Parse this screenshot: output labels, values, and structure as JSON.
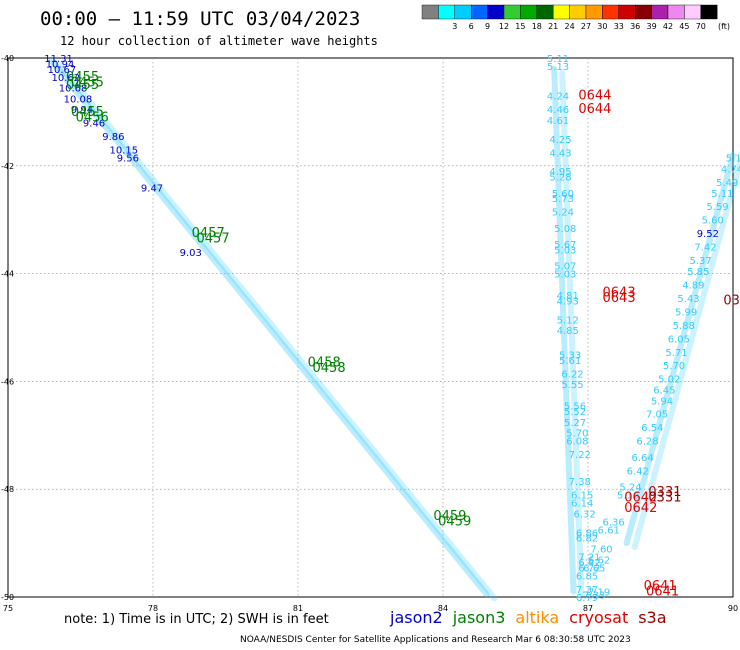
{
  "header": {
    "title": "00:00 — 11:59 UTC 03/04/2023",
    "subtitle": "12 hour collection of altimeter wave heights"
  },
  "footer": {
    "note": "note: 1) Time is in UTC; 2) SWH is in feet",
    "credit": "NOAA/NESDIS Center for Satellite Applications and Research   Mar  6 08:30:58 UTC 2023"
  },
  "satellites": [
    {
      "name": "jason2",
      "color": "#0000cc"
    },
    {
      "name": "jason3",
      "color": "#008000"
    },
    {
      "name": "altika",
      "color": "#ff8c00"
    },
    {
      "name": "cryosat",
      "color": "#e00000"
    },
    {
      "name": "s3a",
      "color": "#990000"
    }
  ],
  "colorbar": {
    "unit": "(ft)",
    "boxes": [
      {
        "color": "#808080",
        "label": ""
      },
      {
        "color": "#00ffff",
        "label": "3"
      },
      {
        "color": "#00ccff",
        "label": "6"
      },
      {
        "color": "#0066ff",
        "label": "9"
      },
      {
        "color": "#0000cc",
        "label": "12"
      },
      {
        "color": "#33cc33",
        "label": "15"
      },
      {
        "color": "#00aa00",
        "label": "18"
      },
      {
        "color": "#006600",
        "label": "21"
      },
      {
        "color": "#ffff00",
        "label": "24"
      },
      {
        "color": "#ffcc00",
        "label": "27"
      },
      {
        "color": "#ff9900",
        "label": "30"
      },
      {
        "color": "#ff3300",
        "label": "33"
      },
      {
        "color": "#cc0000",
        "label": "36"
      },
      {
        "color": "#880000",
        "label": "39"
      },
      {
        "color": "#aa22aa",
        "label": "42"
      },
      {
        "color": "#ee88ee",
        "label": "45"
      },
      {
        "color": "#ffccff",
        "label": "70"
      },
      {
        "color": "#000000",
        "label": ""
      }
    ]
  },
  "chart_data": {
    "type": "scatter",
    "title": "00:00 — 11:59 UTC 03/04/2023",
    "xlabel": "",
    "ylabel": "",
    "xlim": [
      75,
      90
    ],
    "ylim": [
      -50,
      -40
    ],
    "x_ticks": [
      "75",
      "78",
      "81",
      "84",
      "87",
      "90"
    ],
    "y_ticks": [
      "-40",
      "-42",
      "-44",
      "-46",
      "-48",
      "-50"
    ],
    "tracks": [
      {
        "name": "diagonal-track",
        "color": "#33ccff",
        "start": [
          75.9,
          -40.05
        ],
        "end": [
          84.9,
          -49.95
        ]
      },
      {
        "name": "track-87-left",
        "color": "#33ccff",
        "start": [
          86.3,
          -40.2
        ],
        "end": [
          86.7,
          -49.9
        ]
      },
      {
        "name": "track-89-right",
        "color": "#33ccff",
        "start": [
          90.0,
          -41.8
        ],
        "end": [
          87.8,
          -49.0
        ]
      }
    ],
    "labels": [
      {
        "x": 75.75,
        "y": -40.0,
        "text": "11.31",
        "color": "#0000cc"
      },
      {
        "x": 75.78,
        "y": -40.1,
        "text": "10.94",
        "color": "#0000cc"
      },
      {
        "x": 75.82,
        "y": -40.2,
        "text": "10.67",
        "color": "#0000cc"
      },
      {
        "x": 75.9,
        "y": -40.35,
        "text": "10.62",
        "color": "#0000cc"
      },
      {
        "x": 76.05,
        "y": -40.55,
        "text": "10.68",
        "color": "#0000cc"
      },
      {
        "x": 76.15,
        "y": -40.75,
        "text": "10.08",
        "color": "#0000cc"
      },
      {
        "x": 76.3,
        "y": -40.95,
        "text": "9.94",
        "color": "#0000cc"
      },
      {
        "x": 76.55,
        "y": -41.2,
        "text": "9.46",
        "color": "#0000cc"
      },
      {
        "x": 76.95,
        "y": -41.45,
        "text": "9.86",
        "color": "#0000cc"
      },
      {
        "x": 77.1,
        "y": -41.7,
        "text": "10.15",
        "color": "#0000cc"
      },
      {
        "x": 77.25,
        "y": -41.85,
        "text": "9.56",
        "color": "#0000cc"
      },
      {
        "x": 77.75,
        "y": -42.4,
        "text": "9.47",
        "color": "#0000cc"
      },
      {
        "x": 78.55,
        "y": -43.6,
        "text": "9.03",
        "color": "#0000cc"
      },
      {
        "x": 76.2,
        "y": -40.35,
        "text": "0455",
        "color": "#008000",
        "big": true
      },
      {
        "x": 76.3,
        "y": -40.45,
        "text": "0455",
        "color": "#008000",
        "big": true
      },
      {
        "x": 76.2,
        "y": -40.5,
        "text": "0455",
        "color": "#008000",
        "big": true
      },
      {
        "x": 76.3,
        "y": -41.0,
        "text": "0455",
        "color": "#008000",
        "big": true
      },
      {
        "x": 76.4,
        "y": -41.1,
        "text": "0456",
        "color": "#008000",
        "big": true
      },
      {
        "x": 78.8,
        "y": -43.25,
        "text": "0457",
        "color": "#008000",
        "big": true
      },
      {
        "x": 78.9,
        "y": -43.35,
        "text": "0457",
        "color": "#008000",
        "big": true
      },
      {
        "x": 81.2,
        "y": -45.65,
        "text": "0458",
        "color": "#008000",
        "big": true
      },
      {
        "x": 81.3,
        "y": -45.75,
        "text": "0458",
        "color": "#008000",
        "big": true
      },
      {
        "x": 83.8,
        "y": -48.5,
        "text": "0459",
        "color": "#008000",
        "big": true
      },
      {
        "x": 83.9,
        "y": -48.6,
        "text": "0459",
        "color": "#008000",
        "big": true
      },
      {
        "x": 86.15,
        "y": -40.0,
        "text": "5.11",
        "color": "#33ccff"
      },
      {
        "x": 86.15,
        "y": -40.15,
        "text": "5.13",
        "color": "#33ccff"
      },
      {
        "x": 86.15,
        "y": -40.7,
        "text": "4.24",
        "color": "#33ccff"
      },
      {
        "x": 86.15,
        "y": -40.95,
        "text": "4.46",
        "color": "#33ccff"
      },
      {
        "x": 86.15,
        "y": -41.15,
        "text": "4.61",
        "color": "#33ccff"
      },
      {
        "x": 86.2,
        "y": -41.5,
        "text": "4.25",
        "color": "#33ccff"
      },
      {
        "x": 86.2,
        "y": -41.75,
        "text": "4.43",
        "color": "#33ccff"
      },
      {
        "x": 86.2,
        "y": -42.1,
        "text": "4.95",
        "color": "#33ccff"
      },
      {
        "x": 86.2,
        "y": -42.2,
        "text": "5.28",
        "color": "#33ccff"
      },
      {
        "x": 86.25,
        "y": -42.5,
        "text": "5.60",
        "color": "#33ccff"
      },
      {
        "x": 86.25,
        "y": -42.6,
        "text": "5.73",
        "color": "#33ccff"
      },
      {
        "x": 86.25,
        "y": -42.85,
        "text": "5.24",
        "color": "#33ccff"
      },
      {
        "x": 86.3,
        "y": -43.15,
        "text": "5.08",
        "color": "#33ccff"
      },
      {
        "x": 86.3,
        "y": -43.45,
        "text": "5.67",
        "color": "#33ccff"
      },
      {
        "x": 86.3,
        "y": -43.55,
        "text": "5.03",
        "color": "#33ccff"
      },
      {
        "x": 86.3,
        "y": -43.85,
        "text": "5.07",
        "color": "#33ccff"
      },
      {
        "x": 86.3,
        "y": -44.0,
        "text": "5.03",
        "color": "#33ccff"
      },
      {
        "x": 86.35,
        "y": -44.4,
        "text": "4.81",
        "color": "#33ccff"
      },
      {
        "x": 86.35,
        "y": -44.5,
        "text": "4.93",
        "color": "#33ccff"
      },
      {
        "x": 86.35,
        "y": -44.85,
        "text": "5.12",
        "color": "#33ccff"
      },
      {
        "x": 86.35,
        "y": -45.05,
        "text": "4.85",
        "color": "#33ccff"
      },
      {
        "x": 86.4,
        "y": -45.5,
        "text": "5.33",
        "color": "#33ccff"
      },
      {
        "x": 86.4,
        "y": -45.6,
        "text": "5.61",
        "color": "#33ccff"
      },
      {
        "x": 86.45,
        "y": -45.85,
        "text": "6.22",
        "color": "#33ccff"
      },
      {
        "x": 86.45,
        "y": -46.05,
        "text": "5.55",
        "color": "#33ccff"
      },
      {
        "x": 86.5,
        "y": -46.45,
        "text": "5.56",
        "color": "#33ccff"
      },
      {
        "x": 86.5,
        "y": -46.55,
        "text": "5.52",
        "color": "#33ccff"
      },
      {
        "x": 86.5,
        "y": -46.75,
        "text": "5.27",
        "color": "#33ccff"
      },
      {
        "x": 86.55,
        "y": -46.95,
        "text": "5.70",
        "color": "#33ccff"
      },
      {
        "x": 86.55,
        "y": -47.1,
        "text": "6.08",
        "color": "#33ccff"
      },
      {
        "x": 86.6,
        "y": -47.35,
        "text": "7.22",
        "color": "#33ccff"
      },
      {
        "x": 86.6,
        "y": -47.85,
        "text": "7.38",
        "color": "#33ccff"
      },
      {
        "x": 86.65,
        "y": -48.1,
        "text": "6.15",
        "color": "#33ccff"
      },
      {
        "x": 86.65,
        "y": -48.25,
        "text": "6.14",
        "color": "#33ccff"
      },
      {
        "x": 86.7,
        "y": -48.45,
        "text": "6.32",
        "color": "#33ccff"
      },
      {
        "x": 86.75,
        "y": -48.8,
        "text": "6.86",
        "color": "#33ccff"
      },
      {
        "x": 86.75,
        "y": -48.9,
        "text": "6.82",
        "color": "#33ccff"
      },
      {
        "x": 86.8,
        "y": -49.25,
        "text": "7.21",
        "color": "#33ccff"
      },
      {
        "x": 86.8,
        "y": -49.35,
        "text": "6.42",
        "color": "#33ccff"
      },
      {
        "x": 86.8,
        "y": -49.45,
        "text": "6.72",
        "color": "#33ccff"
      },
      {
        "x": 86.75,
        "y": -49.6,
        "text": "6.85",
        "color": "#33ccff"
      },
      {
        "x": 86.75,
        "y": -49.85,
        "text": "7.37",
        "color": "#33ccff"
      },
      {
        "x": 86.75,
        "y": -50.0,
        "text": "6.79",
        "color": "#33ccff"
      },
      {
        "x": 86.9,
        "y": -49.95,
        "text": "7.33",
        "color": "#33ccff"
      },
      {
        "x": 87.0,
        "y": -49.9,
        "text": "7.19",
        "color": "#33ccff"
      },
      {
        "x": 87.3,
        "y": -48.6,
        "text": "6.36",
        "color": "#33ccff"
      },
      {
        "x": 87.2,
        "y": -48.75,
        "text": "6.61",
        "color": "#33ccff"
      },
      {
        "x": 87.05,
        "y": -49.1,
        "text": "7.60",
        "color": "#33ccff"
      },
      {
        "x": 87.0,
        "y": -49.3,
        "text": "6.62",
        "color": "#33ccff"
      },
      {
        "x": 86.9,
        "y": -49.45,
        "text": "6.65",
        "color": "#33ccff"
      },
      {
        "x": 87.6,
        "y": -48.1,
        "text": "5.16",
        "color": "#33ccff"
      },
      {
        "x": 87.65,
        "y": -47.95,
        "text": "5.24",
        "color": "#33ccff"
      },
      {
        "x": 87.8,
        "y": -47.65,
        "text": "6.42",
        "color": "#33ccff"
      },
      {
        "x": 87.9,
        "y": -47.4,
        "text": "6.64",
        "color": "#33ccff"
      },
      {
        "x": 88.0,
        "y": -47.1,
        "text": "6.28",
        "color": "#33ccff"
      },
      {
        "x": 88.1,
        "y": -46.85,
        "text": "6.54",
        "color": "#33ccff"
      },
      {
        "x": 88.2,
        "y": -46.6,
        "text": "7.05",
        "color": "#33ccff"
      },
      {
        "x": 88.3,
        "y": -46.35,
        "text": "5.94",
        "color": "#33ccff"
      },
      {
        "x": 88.35,
        "y": -46.15,
        "text": "6.45",
        "color": "#33ccff"
      },
      {
        "x": 88.45,
        "y": -45.95,
        "text": "5.02",
        "color": "#33ccff"
      },
      {
        "x": 88.55,
        "y": -45.7,
        "text": "5.70",
        "color": "#33ccff"
      },
      {
        "x": 88.6,
        "y": -45.45,
        "text": "5.71",
        "color": "#33ccff"
      },
      {
        "x": 88.65,
        "y": -45.2,
        "text": "6.05",
        "color": "#33ccff"
      },
      {
        "x": 88.75,
        "y": -44.95,
        "text": "5.88",
        "color": "#33ccff"
      },
      {
        "x": 88.8,
        "y": -44.7,
        "text": "5.99",
        "color": "#33ccff"
      },
      {
        "x": 88.85,
        "y": -44.45,
        "text": "5.43",
        "color": "#33ccff"
      },
      {
        "x": 88.95,
        "y": -44.2,
        "text": "4.89",
        "color": "#33ccff"
      },
      {
        "x": 89.05,
        "y": -43.95,
        "text": "5.85",
        "color": "#33ccff"
      },
      {
        "x": 89.1,
        "y": -43.75,
        "text": "5.37",
        "color": "#33ccff"
      },
      {
        "x": 89.2,
        "y": -43.5,
        "text": "7.42",
        "color": "#33ccff"
      },
      {
        "x": 89.25,
        "y": -43.25,
        "text": "9.52",
        "color": "#0000cc"
      },
      {
        "x": 89.35,
        "y": -43.0,
        "text": "5.60",
        "color": "#33ccff"
      },
      {
        "x": 89.45,
        "y": -42.75,
        "text": "5.59",
        "color": "#33ccff"
      },
      {
        "x": 89.55,
        "y": -42.5,
        "text": "5.11",
        "color": "#33ccff"
      },
      {
        "x": 89.65,
        "y": -42.3,
        "text": "5.49",
        "color": "#33ccff"
      },
      {
        "x": 89.75,
        "y": -42.05,
        "text": "4.74",
        "color": "#33ccff"
      },
      {
        "x": 89.85,
        "y": -41.85,
        "text": "5.16",
        "color": "#33ccff"
      },
      {
        "x": 86.8,
        "y": -40.7,
        "text": "0644",
        "color": "#e00000",
        "big": true
      },
      {
        "x": 86.8,
        "y": -40.95,
        "text": "0644",
        "color": "#e00000",
        "big": true
      },
      {
        "x": 87.3,
        "y": -44.35,
        "text": "0643",
        "color": "#e00000",
        "big": true
      },
      {
        "x": 87.3,
        "y": -44.45,
        "text": "0643",
        "color": "#e00000",
        "big": true
      },
      {
        "x": 87.75,
        "y": -48.15,
        "text": "0642",
        "color": "#e00000",
        "big": true
      },
      {
        "x": 87.75,
        "y": -48.35,
        "text": "0642",
        "color": "#e00000",
        "big": true
      },
      {
        "x": 88.15,
        "y": -49.8,
        "text": "0641",
        "color": "#e00000",
        "big": true
      },
      {
        "x": 88.2,
        "y": -49.9,
        "text": "0641",
        "color": "#e00000",
        "big": true
      },
      {
        "x": 88.25,
        "y": -48.05,
        "text": "0331",
        "color": "#990000",
        "big": true
      },
      {
        "x": 88.25,
        "y": -48.15,
        "text": "0331",
        "color": "#990000",
        "big": true
      },
      {
        "x": 89.8,
        "y": -44.5,
        "text": "03",
        "color": "#990000",
        "big": true
      }
    ]
  }
}
